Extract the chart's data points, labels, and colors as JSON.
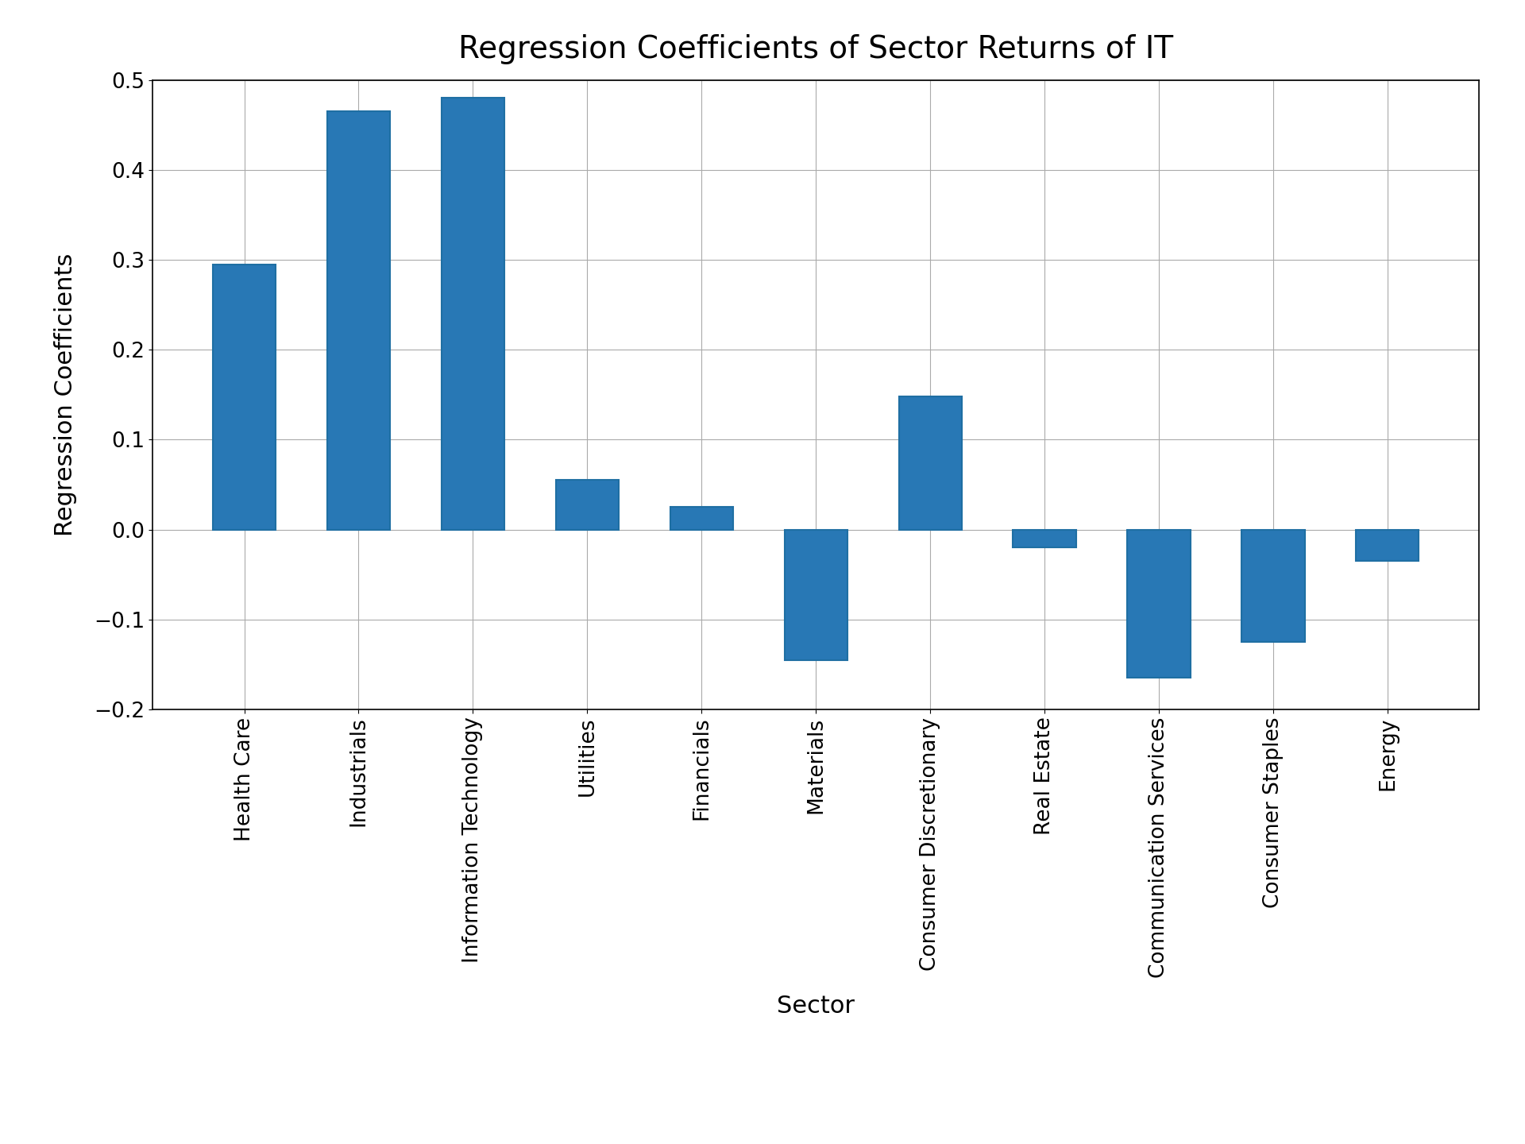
{
  "title": "Regression Coefficients of Sector Returns of IT",
  "xlabel": "Sector",
  "ylabel": "Regression Coefficients",
  "categories": [
    "Health Care",
    "Industrials",
    "Information Technology",
    "Utilities",
    "Financials",
    "Materials",
    "Consumer Discretionary",
    "Real Estate",
    "Communication Services",
    "Consumer Staples",
    "Energy"
  ],
  "values": [
    0.295,
    0.465,
    0.48,
    0.055,
    0.025,
    -0.145,
    0.148,
    -0.02,
    -0.165,
    -0.125,
    -0.035
  ],
  "bar_color": "#2878b5",
  "bar_edgecolor": "#1f6fa3",
  "ylim": [
    -0.2,
    0.5
  ],
  "yticks": [
    -0.2,
    -0.1,
    0.0,
    0.1,
    0.2,
    0.3,
    0.4,
    0.5
  ],
  "title_fontsize": 28,
  "label_fontsize": 22,
  "tick_fontsize": 19,
  "background_color": "#ffffff",
  "grid_color": "#aaaaaa",
  "grid_linewidth": 0.8,
  "bar_width": 0.55
}
